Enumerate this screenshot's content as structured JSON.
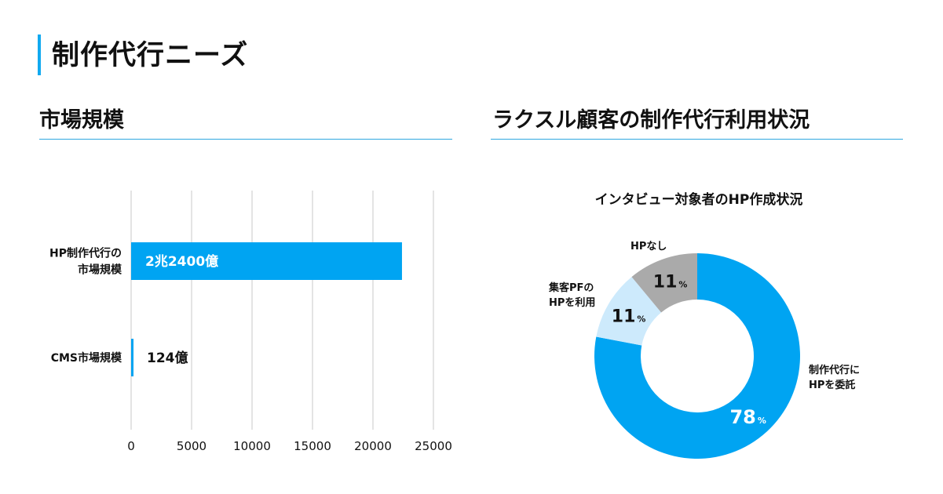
{
  "page": {
    "title": "制作代行ニーズ",
    "accent_color": "#11a9f0"
  },
  "left_section": {
    "title": "市場規模"
  },
  "right_section": {
    "title": "ラクスル顧客の制作代行利用状況"
  },
  "chart_data": [
    {
      "type": "bar",
      "orientation": "horizontal",
      "categories": [
        "HP制作代行の\n市場規模",
        "CMS市場規模"
      ],
      "values": [
        22400,
        124
      ],
      "value_labels": [
        "2兆2400億",
        "124億"
      ],
      "xlim": [
        0,
        25000
      ],
      "xticks": [
        0,
        5000,
        10000,
        15000,
        20000,
        25000
      ],
      "grid": true,
      "bar_color": "#00a4f2"
    },
    {
      "type": "pie",
      "donut": true,
      "title": "インタビュー対象者のHP作成状況",
      "slices": [
        {
          "label": "制作代行に\nHPを委託",
          "value": 78,
          "display": "78",
          "unit": "%",
          "color": "#00a4f2"
        },
        {
          "label": "集客PFの\nHPを利用",
          "value": 11,
          "display": "11",
          "unit": "%",
          "color": "#cdeafc"
        },
        {
          "label": "HPなし",
          "value": 11,
          "display": "11",
          "unit": "%",
          "color": "#aaaaaa"
        }
      ]
    }
  ]
}
